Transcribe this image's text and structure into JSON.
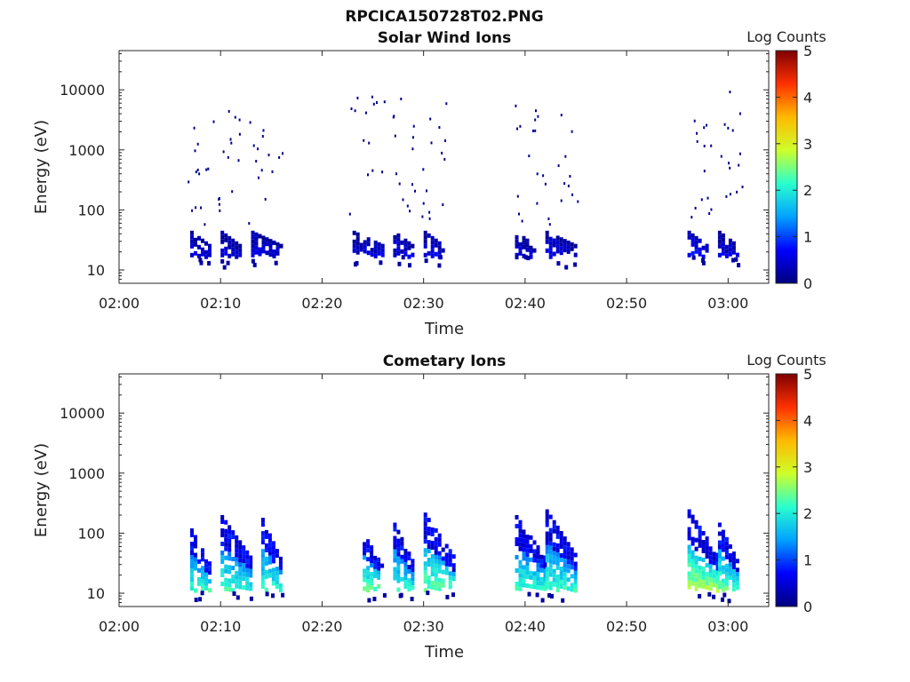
{
  "figure": {
    "title": "RPCICA150728T02.PNG"
  },
  "colormap": {
    "stops": [
      "#00007f",
      "#0000ff",
      "#00a2ff",
      "#29ffce",
      "#ceff29",
      "#ffb900",
      "#ff3000",
      "#7f0000"
    ]
  },
  "chart_data": [
    {
      "type": "heatmap",
      "title": "Solar Wind Ions",
      "xlabel": "Time",
      "ylabel": "Energy (eV)",
      "colorbar_label": "Log Counts",
      "colorbar_ticks": [
        "0",
        "1",
        "2",
        "3",
        "4",
        "5"
      ],
      "clim": [
        0,
        5
      ],
      "xlim": [
        "02:00",
        "03:04"
      ],
      "x_ticks": [
        "02:00",
        "02:10",
        "02:20",
        "02:30",
        "02:40",
        "02:50",
        "03:00"
      ],
      "y_scale": "log",
      "ylim": [
        6,
        45000
      ],
      "y_ticks": [
        "10",
        "100",
        "1000",
        "10000"
      ],
      "bursts": [
        {
          "start": "02:07",
          "end": "02:09",
          "emin": 18,
          "emax": 45,
          "level": 0.5
        },
        {
          "start": "02:10",
          "end": "02:12",
          "emin": 18,
          "emax": 45,
          "level": 0.5
        },
        {
          "start": "02:13",
          "end": "02:16",
          "emin": 18,
          "emax": 45,
          "level": 0.5
        },
        {
          "start": "02:23",
          "end": "02:26",
          "emin": 18,
          "emax": 45,
          "level": 0.5
        },
        {
          "start": "02:27",
          "end": "02:29",
          "emin": 18,
          "emax": 45,
          "level": 0.5
        },
        {
          "start": "02:30",
          "end": "02:32",
          "emin": 18,
          "emax": 45,
          "level": 0.5
        },
        {
          "start": "02:39",
          "end": "02:41",
          "emin": 18,
          "emax": 45,
          "level": 0.5
        },
        {
          "start": "02:42",
          "end": "02:45",
          "emin": 18,
          "emax": 45,
          "level": 0.5
        },
        {
          "start": "02:56",
          "end": "02:58",
          "emin": 18,
          "emax": 45,
          "level": 0.7
        },
        {
          "start": "02:59",
          "end": "03:01",
          "emin": 18,
          "emax": 45,
          "level": 0.5
        }
      ],
      "sparse_high_energy_counts": true
    },
    {
      "type": "heatmap",
      "title": "Cometary Ions",
      "xlabel": "Time",
      "ylabel": "Energy (eV)",
      "colorbar_label": "Log Counts",
      "colorbar_ticks": [
        "0",
        "1",
        "2",
        "3",
        "4",
        "5"
      ],
      "clim": [
        0,
        5
      ],
      "xlim": [
        "02:00",
        "03:04"
      ],
      "x_ticks": [
        "02:00",
        "02:10",
        "02:20",
        "02:30",
        "02:40",
        "02:50",
        "03:00"
      ],
      "y_scale": "log",
      "ylim": [
        6,
        45000
      ],
      "y_ticks": [
        "10",
        "100",
        "1000",
        "10000"
      ],
      "bursts": [
        {
          "start": "02:07",
          "end": "02:09",
          "emin": 12,
          "emax": 120,
          "level": 2.0
        },
        {
          "start": "02:10",
          "end": "02:13",
          "emin": 12,
          "emax": 200,
          "level": 2.0
        },
        {
          "start": "02:14",
          "end": "02:16",
          "emin": 12,
          "emax": 180,
          "level": 2.0
        },
        {
          "start": "02:24",
          "end": "02:26",
          "emin": 12,
          "emax": 100,
          "level": 2.2
        },
        {
          "start": "02:27",
          "end": "02:29",
          "emin": 12,
          "emax": 150,
          "level": 2.0
        },
        {
          "start": "02:30",
          "end": "02:33",
          "emin": 12,
          "emax": 220,
          "level": 2.2
        },
        {
          "start": "02:39",
          "end": "02:42",
          "emin": 12,
          "emax": 200,
          "level": 2.0
        },
        {
          "start": "02:42",
          "end": "02:45",
          "emin": 12,
          "emax": 250,
          "level": 2.0
        },
        {
          "start": "02:56",
          "end": "02:59",
          "emin": 12,
          "emax": 250,
          "level": 2.5
        },
        {
          "start": "02:59",
          "end": "03:01",
          "emin": 12,
          "emax": 150,
          "level": 2.2
        }
      ]
    }
  ]
}
